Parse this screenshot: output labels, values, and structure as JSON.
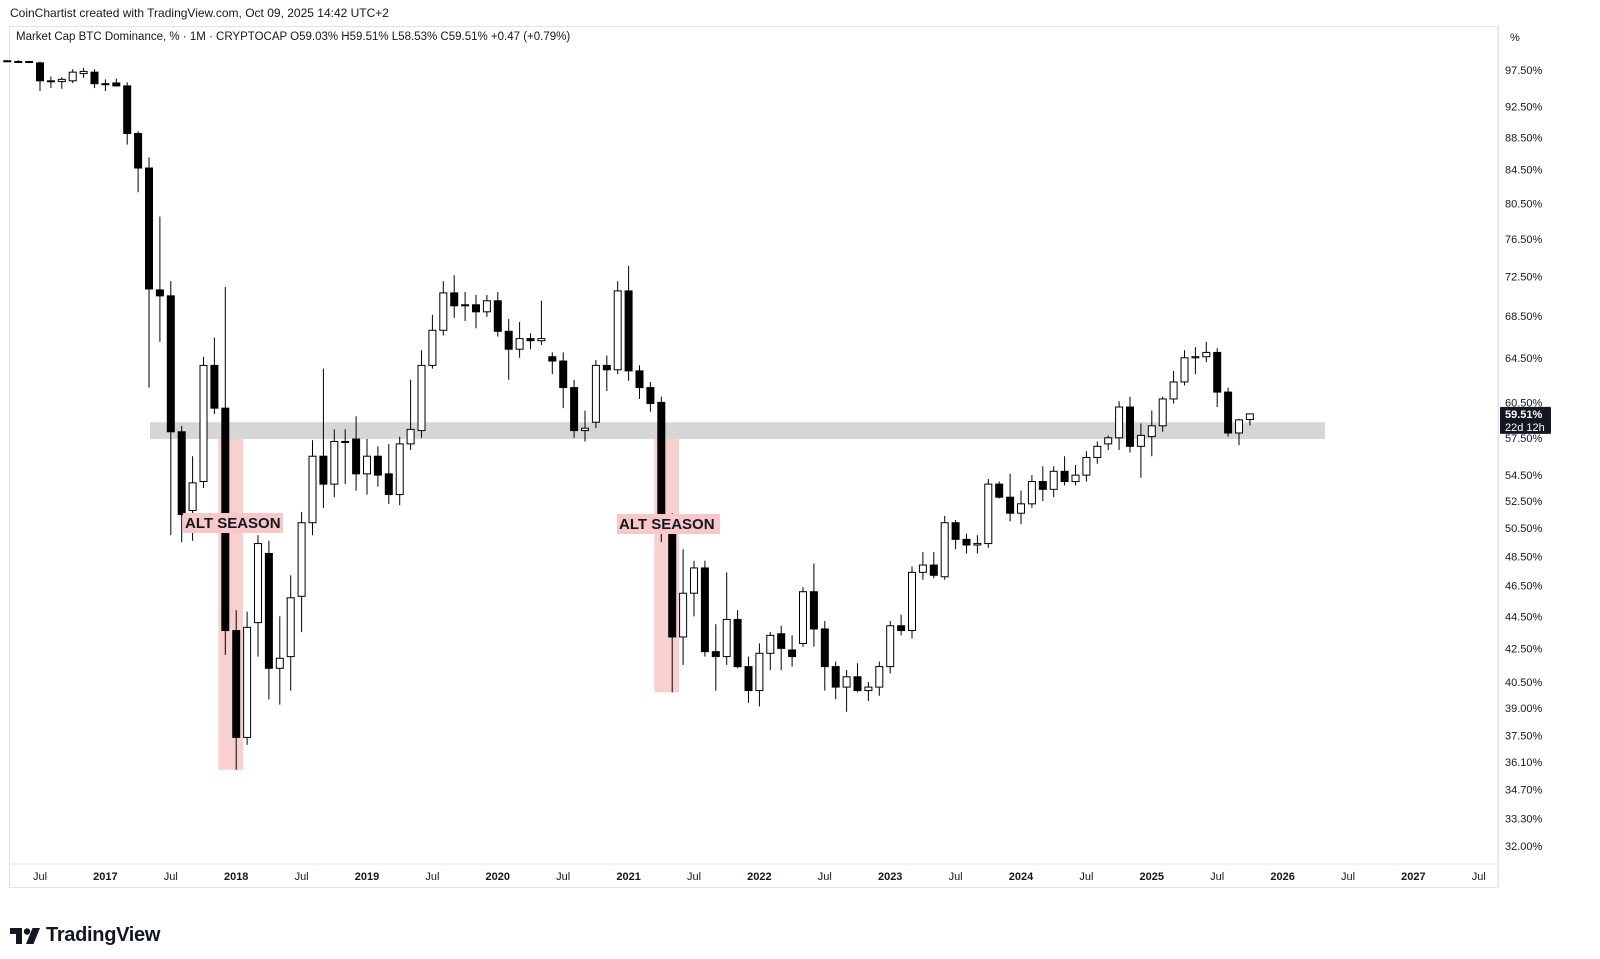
{
  "header": {
    "credit": "CoinChartist created with TradingView.com, Oct 09, 2025 14:42 UTC+2",
    "legend": "Market Cap BTC Dominance, % · 1M · CRYPTOCAP   O59.03%  H59.51%  L58.53%  C59.51%  +0.47 (+0.79%)"
  },
  "axis": {
    "unit_label": "%",
    "price_label": "59.51%",
    "countdown_label": "22d 12h"
  },
  "annotations": [
    {
      "text": "ALT SEASON"
    },
    {
      "text": "ALT SEASON"
    }
  ],
  "footer": {
    "brand": "TradingView"
  },
  "colors": {
    "up_candle": "#ffffff",
    "down_candle": "#000000",
    "candle_outline": "#000000",
    "zone_band": "#d6d6d6",
    "alt_season_band": "#f8c8c8",
    "alt_season_label_bg": "#f8c8c8",
    "price_label_bg": "#131722"
  },
  "chart_data": {
    "type": "candlestick",
    "title": "Market Cap BTC Dominance, % · 1M · CRYPTOCAP",
    "scale": "log",
    "y_ticks": [
      97.5,
      92.5,
      88.5,
      84.5,
      80.5,
      76.5,
      72.5,
      68.5,
      64.5,
      60.5,
      57.5,
      54.5,
      52.5,
      50.5,
      48.5,
      46.5,
      44.5,
      42.5,
      40.5,
      39.0,
      37.5,
      36.1,
      34.7,
      33.3,
      32.0
    ],
    "y_tick_labels": [
      "97.50%",
      "92.50%",
      "88.50%",
      "84.50%",
      "80.50%",
      "76.50%",
      "72.50%",
      "68.50%",
      "64.50%",
      "60.50%",
      "57.50%",
      "54.50%",
      "52.50%",
      "50.50%",
      "48.50%",
      "46.50%",
      "44.50%",
      "42.50%",
      "40.50%",
      "39.00%",
      "37.50%",
      "36.10%",
      "34.70%",
      "33.30%",
      "32.00%"
    ],
    "x_ticks": [
      {
        "label": "Jul",
        "date": "2016-07"
      },
      {
        "label": "2017",
        "date": "2017-01"
      },
      {
        "label": "Jul",
        "date": "2017-07"
      },
      {
        "label": "2018",
        "date": "2018-01"
      },
      {
        "label": "Jul",
        "date": "2018-07"
      },
      {
        "label": "2019",
        "date": "2019-01"
      },
      {
        "label": "Jul",
        "date": "2019-07"
      },
      {
        "label": "2020",
        "date": "2020-01"
      },
      {
        "label": "Jul",
        "date": "2020-07"
      },
      {
        "label": "2021",
        "date": "2021-01"
      },
      {
        "label": "Jul",
        "date": "2021-07"
      },
      {
        "label": "2022",
        "date": "2022-01"
      },
      {
        "label": "Jul",
        "date": "2022-07"
      },
      {
        "label": "2023",
        "date": "2023-01"
      },
      {
        "label": "Jul",
        "date": "2023-07"
      },
      {
        "label": "2024",
        "date": "2024-01"
      },
      {
        "label": "Jul",
        "date": "2024-07"
      },
      {
        "label": "2025",
        "date": "2025-01"
      },
      {
        "label": "Jul",
        "date": "2025-07"
      },
      {
        "label": "2026",
        "date": "2026-01"
      },
      {
        "label": "Jul",
        "date": "2026-07"
      },
      {
        "label": "2027",
        "date": "2027-01"
      },
      {
        "label": "Jul",
        "date": "2027-07"
      }
    ],
    "support_zone": [
      57.4,
      58.8
    ],
    "alt_seasons": [
      {
        "label": "ALT SEASON",
        "from": "2017-12",
        "to": "2018-01",
        "low": 35.7,
        "high": 57.4
      },
      {
        "label": "ALT SEASON",
        "from": "2021-04",
        "to": "2021-05",
        "low": 39.9,
        "high": 57.4
      }
    ],
    "candles": [
      {
        "t": "2016-04",
        "o": 98.8,
        "h": 98.9,
        "l": 98.6,
        "c": 98.7
      },
      {
        "t": "2016-05",
        "o": 98.7,
        "h": 98.9,
        "l": 98.5,
        "c": 98.6
      },
      {
        "t": "2016-06",
        "o": 98.6,
        "h": 98.8,
        "l": 98.5,
        "c": 98.7
      },
      {
        "t": "2016-07",
        "o": 98.5,
        "h": 98.7,
        "l": 94.6,
        "c": 96.0
      },
      {
        "t": "2016-08",
        "o": 96.0,
        "h": 96.6,
        "l": 95.0,
        "c": 95.9
      },
      {
        "t": "2016-09",
        "o": 95.9,
        "h": 96.5,
        "l": 94.9,
        "c": 96.2
      },
      {
        "t": "2016-10",
        "o": 96.0,
        "h": 97.6,
        "l": 95.7,
        "c": 97.2
      },
      {
        "t": "2016-11",
        "o": 97.0,
        "h": 97.8,
        "l": 96.4,
        "c": 97.3
      },
      {
        "t": "2016-12",
        "o": 97.2,
        "h": 97.6,
        "l": 95.0,
        "c": 95.6
      },
      {
        "t": "2017-01",
        "o": 95.5,
        "h": 96.2,
        "l": 94.6,
        "c": 95.6
      },
      {
        "t": "2017-02",
        "o": 95.7,
        "h": 96.3,
        "l": 95.2,
        "c": 95.3
      },
      {
        "t": "2017-03",
        "o": 95.3,
        "h": 95.8,
        "l": 87.6,
        "c": 89.0
      },
      {
        "t": "2017-04",
        "o": 89.0,
        "h": 89.3,
        "l": 81.8,
        "c": 84.7
      },
      {
        "t": "2017-05",
        "o": 84.7,
        "h": 86.0,
        "l": 61.8,
        "c": 71.2
      },
      {
        "t": "2017-06",
        "o": 71.1,
        "h": 79.0,
        "l": 66.0,
        "c": 70.5
      },
      {
        "t": "2017-07",
        "o": 70.5,
        "h": 72.0,
        "l": 50.0,
        "c": 58.0
      },
      {
        "t": "2017-08",
        "o": 58.0,
        "h": 58.5,
        "l": 49.5,
        "c": 51.5
      },
      {
        "t": "2017-09",
        "o": 51.8,
        "h": 56.0,
        "l": 49.6,
        "c": 53.9
      },
      {
        "t": "2017-10",
        "o": 54.0,
        "h": 64.6,
        "l": 53.5,
        "c": 63.8
      },
      {
        "t": "2017-11",
        "o": 63.8,
        "h": 66.4,
        "l": 59.5,
        "c": 60.0
      },
      {
        "t": "2017-12",
        "o": 60.0,
        "h": 71.4,
        "l": 42.1,
        "c": 43.6
      },
      {
        "t": "2018-01",
        "o": 43.6,
        "h": 44.9,
        "l": 35.7,
        "c": 37.4
      },
      {
        "t": "2018-02",
        "o": 37.4,
        "h": 44.8,
        "l": 37.0,
        "c": 43.8
      },
      {
        "t": "2018-03",
        "o": 44.1,
        "h": 50.0,
        "l": 42.0,
        "c": 49.4
      },
      {
        "t": "2018-04",
        "o": 48.7,
        "h": 49.6,
        "l": 39.5,
        "c": 41.3
      },
      {
        "t": "2018-05",
        "o": 41.3,
        "h": 44.5,
        "l": 39.2,
        "c": 41.9
      },
      {
        "t": "2018-06",
        "o": 42.0,
        "h": 47.2,
        "l": 40.0,
        "c": 45.7
      },
      {
        "t": "2018-07",
        "o": 45.8,
        "h": 51.7,
        "l": 43.5,
        "c": 50.9
      },
      {
        "t": "2018-08",
        "o": 50.9,
        "h": 57.3,
        "l": 50.0,
        "c": 56.0
      },
      {
        "t": "2018-09",
        "o": 56.0,
        "h": 63.5,
        "l": 52.0,
        "c": 53.8
      },
      {
        "t": "2018-10",
        "o": 53.8,
        "h": 58.2,
        "l": 52.8,
        "c": 57.2
      },
      {
        "t": "2018-11",
        "o": 57.2,
        "h": 58.2,
        "l": 53.8,
        "c": 57.2
      },
      {
        "t": "2018-12",
        "o": 57.4,
        "h": 59.3,
        "l": 53.3,
        "c": 54.6
      },
      {
        "t": "2019-01",
        "o": 54.6,
        "h": 57.4,
        "l": 53.0,
        "c": 56.0
      },
      {
        "t": "2019-02",
        "o": 56.0,
        "h": 56.8,
        "l": 53.6,
        "c": 54.5
      },
      {
        "t": "2019-03",
        "o": 54.6,
        "h": 57.0,
        "l": 52.3,
        "c": 53.0
      },
      {
        "t": "2019-04",
        "o": 53.0,
        "h": 57.6,
        "l": 52.2,
        "c": 57.0
      },
      {
        "t": "2019-05",
        "o": 57.0,
        "h": 62.5,
        "l": 56.5,
        "c": 58.2
      },
      {
        "t": "2019-06",
        "o": 58.1,
        "h": 65.2,
        "l": 57.5,
        "c": 63.8
      },
      {
        "t": "2019-07",
        "o": 63.8,
        "h": 68.6,
        "l": 63.5,
        "c": 67.1
      },
      {
        "t": "2019-08",
        "o": 67.1,
        "h": 72.0,
        "l": 66.6,
        "c": 70.8
      },
      {
        "t": "2019-09",
        "o": 70.8,
        "h": 72.6,
        "l": 68.3,
        "c": 69.5
      },
      {
        "t": "2019-10",
        "o": 69.5,
        "h": 70.9,
        "l": 68.0,
        "c": 69.6
      },
      {
        "t": "2019-11",
        "o": 69.6,
        "h": 70.6,
        "l": 67.3,
        "c": 68.9
      },
      {
        "t": "2019-12",
        "o": 68.9,
        "h": 70.6,
        "l": 68.4,
        "c": 70.0
      },
      {
        "t": "2020-01",
        "o": 70.0,
        "h": 70.9,
        "l": 66.5,
        "c": 67.0
      },
      {
        "t": "2020-02",
        "o": 67.0,
        "h": 68.2,
        "l": 62.5,
        "c": 65.3
      },
      {
        "t": "2020-03",
        "o": 65.3,
        "h": 67.9,
        "l": 64.5,
        "c": 66.3
      },
      {
        "t": "2020-04",
        "o": 66.3,
        "h": 66.8,
        "l": 65.3,
        "c": 66.1
      },
      {
        "t": "2020-05",
        "o": 66.1,
        "h": 70.0,
        "l": 65.7,
        "c": 66.3
      },
      {
        "t": "2020-06",
        "o": 64.6,
        "h": 65.0,
        "l": 63.0,
        "c": 64.2
      },
      {
        "t": "2020-07",
        "o": 64.2,
        "h": 65.0,
        "l": 60.0,
        "c": 61.8
      },
      {
        "t": "2020-08",
        "o": 61.8,
        "h": 62.5,
        "l": 57.5,
        "c": 58.1
      },
      {
        "t": "2020-09",
        "o": 58.1,
        "h": 59.8,
        "l": 57.2,
        "c": 58.3
      },
      {
        "t": "2020-10",
        "o": 58.8,
        "h": 64.3,
        "l": 58.3,
        "c": 63.8
      },
      {
        "t": "2020-11",
        "o": 63.8,
        "h": 64.7,
        "l": 61.5,
        "c": 63.4
      },
      {
        "t": "2020-12",
        "o": 63.4,
        "h": 72.0,
        "l": 63.0,
        "c": 71.0
      },
      {
        "t": "2021-01",
        "o": 71.0,
        "h": 73.6,
        "l": 62.4,
        "c": 63.3
      },
      {
        "t": "2021-02",
        "o": 63.3,
        "h": 63.8,
        "l": 60.8,
        "c": 61.8
      },
      {
        "t": "2021-03",
        "o": 61.8,
        "h": 62.3,
        "l": 59.7,
        "c": 60.4
      },
      {
        "t": "2021-04",
        "o": 60.5,
        "h": 61.0,
        "l": 49.5,
        "c": 50.5
      },
      {
        "t": "2021-05",
        "o": 50.5,
        "h": 51.6,
        "l": 39.9,
        "c": 43.2
      },
      {
        "t": "2021-06",
        "o": 43.2,
        "h": 49.0,
        "l": 41.5,
        "c": 46.0
      },
      {
        "t": "2021-07",
        "o": 46.0,
        "h": 48.2,
        "l": 44.5,
        "c": 47.7
      },
      {
        "t": "2021-08",
        "o": 47.7,
        "h": 48.2,
        "l": 42.0,
        "c": 42.3
      },
      {
        "t": "2021-09",
        "o": 42.3,
        "h": 44.0,
        "l": 40.0,
        "c": 42.0
      },
      {
        "t": "2021-10",
        "o": 42.0,
        "h": 47.4,
        "l": 41.5,
        "c": 44.3
      },
      {
        "t": "2021-11",
        "o": 44.3,
        "h": 44.9,
        "l": 41.3,
        "c": 41.4
      },
      {
        "t": "2021-12",
        "o": 41.4,
        "h": 42.0,
        "l": 39.3,
        "c": 40.0
      },
      {
        "t": "2022-01",
        "o": 40.0,
        "h": 42.8,
        "l": 39.1,
        "c": 42.2
      },
      {
        "t": "2022-02",
        "o": 42.2,
        "h": 43.5,
        "l": 41.2,
        "c": 43.3
      },
      {
        "t": "2022-03",
        "o": 43.4,
        "h": 43.9,
        "l": 41.2,
        "c": 42.5
      },
      {
        "t": "2022-04",
        "o": 42.4,
        "h": 43.3,
        "l": 41.4,
        "c": 42.0
      },
      {
        "t": "2022-05",
        "o": 42.8,
        "h": 46.4,
        "l": 42.6,
        "c": 46.1
      },
      {
        "t": "2022-06",
        "o": 46.1,
        "h": 48.0,
        "l": 42.6,
        "c": 43.7
      },
      {
        "t": "2022-07",
        "o": 43.7,
        "h": 44.2,
        "l": 40.0,
        "c": 41.4
      },
      {
        "t": "2022-08",
        "o": 41.4,
        "h": 41.7,
        "l": 39.5,
        "c": 40.2
      },
      {
        "t": "2022-09",
        "o": 40.2,
        "h": 41.2,
        "l": 38.8,
        "c": 40.8
      },
      {
        "t": "2022-10",
        "o": 40.8,
        "h": 41.6,
        "l": 39.9,
        "c": 40.0
      },
      {
        "t": "2022-11",
        "o": 40.0,
        "h": 40.5,
        "l": 39.4,
        "c": 40.2
      },
      {
        "t": "2022-12",
        "o": 40.2,
        "h": 41.7,
        "l": 39.7,
        "c": 41.4
      },
      {
        "t": "2023-01",
        "o": 41.4,
        "h": 44.2,
        "l": 41.0,
        "c": 43.9
      },
      {
        "t": "2023-02",
        "o": 43.9,
        "h": 44.6,
        "l": 43.3,
        "c": 43.6
      },
      {
        "t": "2023-03",
        "o": 43.6,
        "h": 47.8,
        "l": 43.1,
        "c": 47.4
      },
      {
        "t": "2023-04",
        "o": 47.4,
        "h": 48.8,
        "l": 46.9,
        "c": 47.9
      },
      {
        "t": "2023-05",
        "o": 47.9,
        "h": 48.8,
        "l": 47.0,
        "c": 47.2
      },
      {
        "t": "2023-06",
        "o": 47.1,
        "h": 51.4,
        "l": 46.9,
        "c": 50.9
      },
      {
        "t": "2023-07",
        "o": 50.9,
        "h": 51.1,
        "l": 49.0,
        "c": 49.7
      },
      {
        "t": "2023-08",
        "o": 49.7,
        "h": 50.1,
        "l": 48.7,
        "c": 49.3
      },
      {
        "t": "2023-09",
        "o": 49.3,
        "h": 50.0,
        "l": 48.7,
        "c": 49.4
      },
      {
        "t": "2023-10",
        "o": 49.4,
        "h": 54.2,
        "l": 49.1,
        "c": 53.8
      },
      {
        "t": "2023-11",
        "o": 53.8,
        "h": 54.0,
        "l": 52.7,
        "c": 52.8
      },
      {
        "t": "2023-12",
        "o": 52.8,
        "h": 54.6,
        "l": 51.0,
        "c": 51.6
      },
      {
        "t": "2024-01",
        "o": 51.6,
        "h": 53.3,
        "l": 50.8,
        "c": 52.3
      },
      {
        "t": "2024-02",
        "o": 52.3,
        "h": 54.5,
        "l": 52.0,
        "c": 54.0
      },
      {
        "t": "2024-03",
        "o": 54.0,
        "h": 55.2,
        "l": 52.5,
        "c": 53.4
      },
      {
        "t": "2024-04",
        "o": 53.4,
        "h": 55.2,
        "l": 52.8,
        "c": 54.8
      },
      {
        "t": "2024-05",
        "o": 54.8,
        "h": 56.0,
        "l": 53.7,
        "c": 54.0
      },
      {
        "t": "2024-06",
        "o": 54.0,
        "h": 55.3,
        "l": 53.7,
        "c": 54.5
      },
      {
        "t": "2024-07",
        "o": 54.5,
        "h": 56.4,
        "l": 54.0,
        "c": 55.9
      },
      {
        "t": "2024-08",
        "o": 55.9,
        "h": 57.2,
        "l": 55.4,
        "c": 56.8
      },
      {
        "t": "2024-09",
        "o": 57.0,
        "h": 57.7,
        "l": 56.5,
        "c": 57.5
      },
      {
        "t": "2024-10",
        "o": 57.5,
        "h": 60.6,
        "l": 56.5,
        "c": 60.1
      },
      {
        "t": "2024-11",
        "o": 60.1,
        "h": 61.0,
        "l": 56.3,
        "c": 56.8
      },
      {
        "t": "2024-12",
        "o": 56.8,
        "h": 58.7,
        "l": 54.3,
        "c": 57.7
      },
      {
        "t": "2025-01",
        "o": 57.6,
        "h": 59.8,
        "l": 56.0,
        "c": 58.5
      },
      {
        "t": "2025-02",
        "o": 58.5,
        "h": 61.0,
        "l": 58.0,
        "c": 60.8
      },
      {
        "t": "2025-03",
        "o": 60.8,
        "h": 63.3,
        "l": 60.4,
        "c": 62.3
      },
      {
        "t": "2025-04",
        "o": 62.3,
        "h": 65.2,
        "l": 62.0,
        "c": 64.5
      },
      {
        "t": "2025-05",
        "o": 64.5,
        "h": 65.5,
        "l": 63.0,
        "c": 64.6
      },
      {
        "t": "2025-06",
        "o": 64.6,
        "h": 66.0,
        "l": 64.1,
        "c": 65.0
      },
      {
        "t": "2025-07",
        "o": 65.0,
        "h": 65.4,
        "l": 60.1,
        "c": 61.4
      },
      {
        "t": "2025-08",
        "o": 61.4,
        "h": 61.8,
        "l": 57.6,
        "c": 57.9
      },
      {
        "t": "2025-09",
        "o": 57.9,
        "h": 59.1,
        "l": 56.9,
        "c": 59.0
      },
      {
        "t": "2025-10",
        "o": 59.03,
        "h": 59.51,
        "l": 58.53,
        "c": 59.51
      }
    ]
  }
}
